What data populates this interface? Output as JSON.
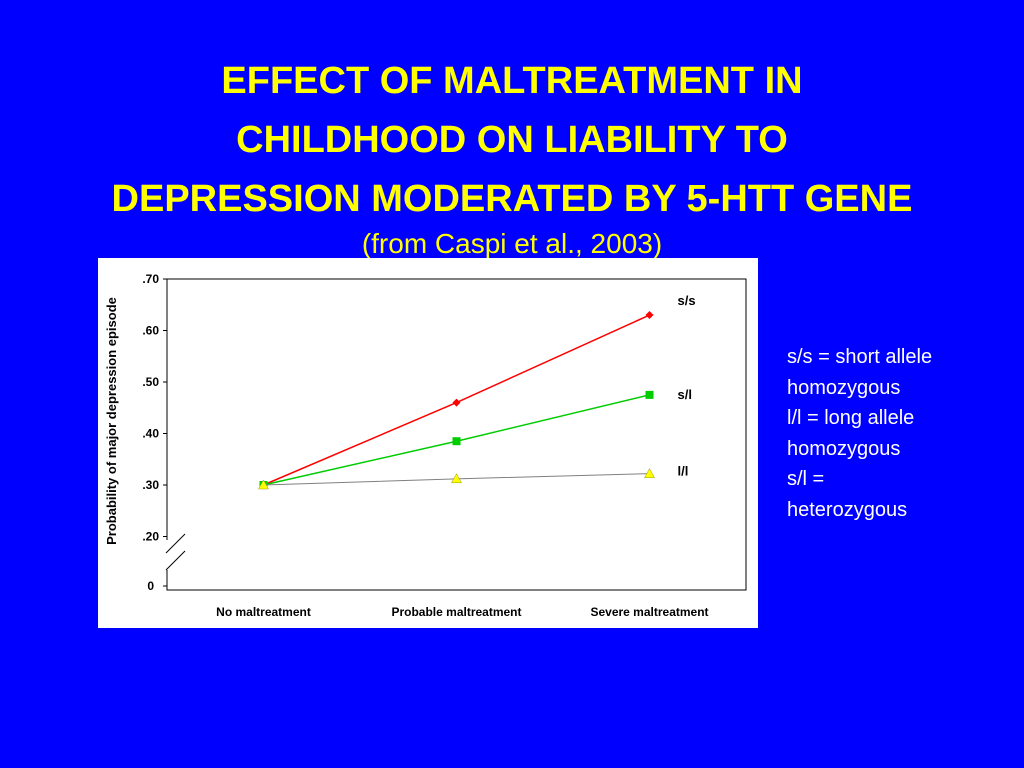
{
  "title_lines": [
    "EFFECT OF MALTREATMENT IN",
    "CHILDHOOD ON LIABILITY TO",
    "DEPRESSION MODERATED BY 5-HTT GENE"
  ],
  "subtitle": "(from Caspi et al., 2003)",
  "legend_note_lines": [
    "s/s = short allele",
    "homozygous",
    "l/l = long allele",
    "homozygous",
    "s/l =",
    "heterozygous"
  ],
  "colors": {
    "background": "#0000ff",
    "title": "#ffff00",
    "plot_area": "#ffffff",
    "series_ss": "#ff0000",
    "series_sl": "#00cc00",
    "series_ll": "#ffff00"
  },
  "chart_data": {
    "type": "line",
    "title": "",
    "xlabel": "",
    "ylabel": "Probability of major depression episode",
    "categories": [
      "No maltreatment",
      "Probable maltreatment",
      "Severe maltreatment"
    ],
    "y_ticks": [
      ".70",
      ".60",
      ".50",
      ".40",
      ".30",
      ".20",
      "0"
    ],
    "ylim": [
      0.1,
      0.7
    ],
    "axis_break": true,
    "grid": false,
    "legend": "labels at line ends",
    "series": [
      {
        "name": "s/s",
        "marker": "diamond",
        "color": "#ff0000",
        "values": [
          0.3,
          0.46,
          0.63
        ]
      },
      {
        "name": "s/l",
        "marker": "square",
        "color": "#00cc00",
        "values": [
          0.3,
          0.385,
          0.475
        ]
      },
      {
        "name": "l/l",
        "marker": "triangle",
        "color": "#ffff00",
        "values": [
          0.3,
          0.312,
          0.322
        ]
      }
    ]
  }
}
